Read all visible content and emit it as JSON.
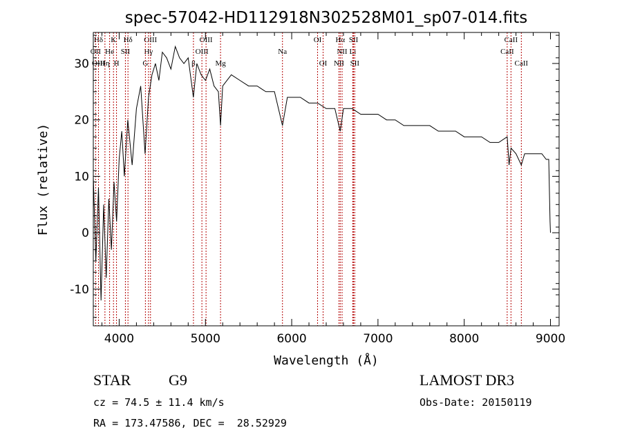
{
  "chart_data": {
    "type": "line",
    "title": "spec-57042-HD112918N302528M01_sp07-014.fits",
    "xlabel": "Wavelength (Å)",
    "ylabel": "Flux (relative)",
    "xlim": [
      3700,
      9100
    ],
    "ylim": [
      -16.5,
      35.5
    ],
    "xticks": [
      4000,
      5000,
      6000,
      7000,
      8000,
      9000
    ],
    "yticks": [
      -10,
      0,
      10,
      20,
      30
    ],
    "series": [
      {
        "name": "flux",
        "x": [
          3700,
          3730,
          3760,
          3790,
          3820,
          3850,
          3880,
          3910,
          3940,
          3970,
          4000,
          4030,
          4060,
          4100,
          4150,
          4200,
          4250,
          4300,
          4340,
          4380,
          4420,
          4460,
          4500,
          4550,
          4600,
          4650,
          4700,
          4750,
          4800,
          4860,
          4900,
          4950,
          5000,
          5050,
          5100,
          5150,
          5175,
          5200,
          5300,
          5400,
          5500,
          5600,
          5700,
          5800,
          5893,
          5950,
          6000,
          6100,
          6200,
          6300,
          6400,
          6500,
          6563,
          6600,
          6700,
          6800,
          6900,
          7000,
          7100,
          7200,
          7300,
          7400,
          7500,
          7600,
          7700,
          7800,
          7900,
          8000,
          8100,
          8200,
          8300,
          8400,
          8498,
          8520,
          8542,
          8600,
          8662,
          8700,
          8800,
          8900,
          8950,
          8980,
          8995,
          9000
        ],
        "values": [
          10,
          -5,
          8,
          -12,
          5,
          -8,
          6,
          -3,
          9,
          2,
          13,
          18,
          10,
          20,
          12,
          22,
          26,
          14,
          24,
          28,
          30,
          27,
          32,
          31,
          29,
          33,
          31,
          30,
          31,
          24,
          30,
          28,
          27,
          29,
          26,
          25,
          19,
          26,
          28,
          27,
          26,
          26,
          25,
          25,
          19,
          24,
          24,
          24,
          23,
          23,
          22,
          22,
          18,
          22,
          22,
          21,
          21,
          21,
          20,
          20,
          19,
          19,
          19,
          19,
          18,
          18,
          18,
          17,
          17,
          17,
          16,
          16,
          17,
          12,
          15,
          14,
          12,
          14,
          14,
          14,
          13,
          13,
          2,
          0
        ]
      }
    ],
    "lines": [
      {
        "label": "Hδ",
        "x": 3760,
        "row": 0
      },
      {
        "label": "K",
        "x": 3934,
        "row": 0
      },
      {
        "label": "Hδ",
        "x": 4102,
        "row": 0
      },
      {
        "label": "OIII",
        "x": 4363,
        "row": 0
      },
      {
        "label": "OIII",
        "x": 5007,
        "row": 0
      },
      {
        "label": "OI",
        "x": 6300,
        "row": 0
      },
      {
        "label": "Hα",
        "x": 6563,
        "row": 0
      },
      {
        "label": "SII",
        "x": 6717,
        "row": 0
      },
      {
        "label": "CaII",
        "x": 8542,
        "row": 0
      },
      {
        "label": "OII",
        "x": 3727,
        "row": 1
      },
      {
        "label": "He",
        "x": 3889,
        "row": 1
      },
      {
        "label": "SII",
        "x": 4072,
        "row": 1
      },
      {
        "label": "Hγ",
        "x": 4340,
        "row": 1
      },
      {
        "label": "OIII",
        "x": 4959,
        "row": 1
      },
      {
        "label": "Na",
        "x": 5893,
        "row": 1
      },
      {
        "label": "NII",
        "x": 6584,
        "row": 1
      },
      {
        "label": "Li",
        "x": 6708,
        "row": 1
      },
      {
        "label": "CaII",
        "x": 8498,
        "row": 1
      },
      {
        "label": "OIII",
        "x": 3760,
        "row": 2
      },
      {
        "label": "Hη",
        "x": 3835,
        "row": 2
      },
      {
        "label": "H",
        "x": 3969,
        "row": 2
      },
      {
        "label": "G",
        "x": 4304,
        "row": 2
      },
      {
        "label": "β",
        "x": 4861,
        "row": 2
      },
      {
        "label": "Mg",
        "x": 5175,
        "row": 2
      },
      {
        "label": "OI",
        "x": 6364,
        "row": 2
      },
      {
        "label": "NII",
        "x": 6548,
        "row": 2
      },
      {
        "label": "SII",
        "x": 6731,
        "row": 2
      },
      {
        "label": "CaII",
        "x": 8662,
        "row": 2
      }
    ]
  },
  "info": {
    "object_class": "STAR",
    "subclass": "G9",
    "survey": "LAMOST DR3",
    "cz": "cz = 74.5 ± 11.4 km/s",
    "obs_date": "Obs-Date: 20150119",
    "coords": "RA = 173.47586, DEC =  28.52929"
  },
  "colors": {
    "spectrum": "#000000",
    "line_markers": "#b30000"
  }
}
